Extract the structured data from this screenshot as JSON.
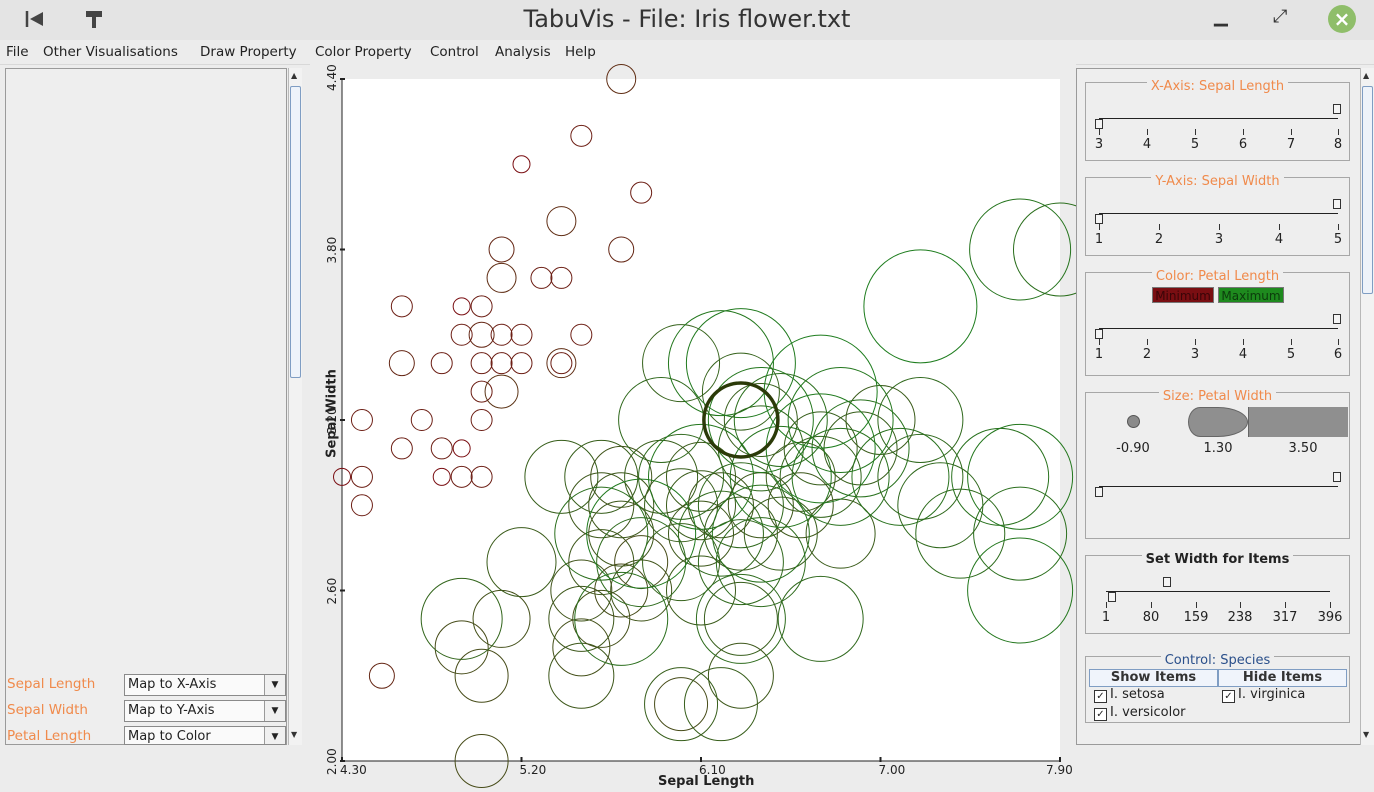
{
  "window": {
    "title": "TabuVis - File: Iris flower.txt"
  },
  "menu": [
    "File",
    "Other Visualisations",
    "Draw Property",
    "Color Property",
    "Control",
    "Analysis",
    "Help"
  ],
  "left": {
    "mappings": [
      {
        "label": "Sepal Length",
        "value": "Map to X-Axis"
      },
      {
        "label": "Sepal Width",
        "value": "Map to Y-Axis"
      },
      {
        "label": "Petal Length",
        "value": "Map to Color"
      }
    ]
  },
  "plot": {
    "xlabel": "Sepal Length",
    "ylabel": "Sepal Width",
    "x_ticks": [
      "4.30",
      "5.20",
      "6.10",
      "7.00",
      "7.90"
    ],
    "y_ticks": [
      "2.00",
      "2.60",
      "3.20",
      "3.80",
      "4.40"
    ]
  },
  "chart_data": {
    "type": "scatter",
    "xlabel": "Sepal Length",
    "ylabel": "Sepal Width",
    "xlim": [
      4.3,
      7.9
    ],
    "ylim": [
      2.0,
      4.4
    ],
    "size_encoding": "Petal Width",
    "color_encoding": "Petal Length",
    "color_min": "#7a0e12",
    "color_max": "#1e7d1e",
    "highlight_color": "#2b3a08",
    "series": [
      {
        "name": "I. setosa",
        "points": [
          [
            4.3,
            3.0,
            0.1
          ],
          [
            4.4,
            2.9,
            0.2
          ],
          [
            4.4,
            3.0,
            0.2
          ],
          [
            4.4,
            3.2,
            0.2
          ],
          [
            4.5,
            2.3,
            0.3
          ],
          [
            4.6,
            3.1,
            0.2
          ],
          [
            4.6,
            3.4,
            0.3
          ],
          [
            4.6,
            3.6,
            0.2
          ],
          [
            4.7,
            3.2,
            0.2
          ],
          [
            4.8,
            3.0,
            0.1
          ],
          [
            4.8,
            3.4,
            0.2
          ],
          [
            4.8,
            3.1,
            0.2
          ],
          [
            4.9,
            3.0,
            0.2
          ],
          [
            4.9,
            3.1,
            0.1
          ],
          [
            4.9,
            3.6,
            0.1
          ],
          [
            5.0,
            3.0,
            0.2
          ],
          [
            5.0,
            3.2,
            0.2
          ],
          [
            5.0,
            3.3,
            0.2
          ],
          [
            5.0,
            3.4,
            0.2
          ],
          [
            5.0,
            3.5,
            0.3
          ],
          [
            5.0,
            3.6,
            0.2
          ],
          [
            5.1,
            3.3,
            0.5
          ],
          [
            5.1,
            3.4,
            0.2
          ],
          [
            5.1,
            3.5,
            0.2
          ],
          [
            5.1,
            3.8,
            0.3
          ],
          [
            5.1,
            3.7,
            0.4
          ],
          [
            5.2,
            3.4,
            0.2
          ],
          [
            5.2,
            3.5,
            0.2
          ],
          [
            5.2,
            4.1,
            0.1
          ],
          [
            5.3,
            3.7,
            0.2
          ],
          [
            5.4,
            3.4,
            0.2
          ],
          [
            5.4,
            3.7,
            0.2
          ],
          [
            5.4,
            3.9,
            0.4
          ],
          [
            5.5,
            3.5,
            0.2
          ],
          [
            5.5,
            4.2,
            0.2
          ],
          [
            5.7,
            3.8,
            0.3
          ],
          [
            5.7,
            4.4,
            0.4
          ],
          [
            5.8,
            4.0,
            0.2
          ],
          [
            5.4,
            3.4,
            0.4
          ],
          [
            4.9,
            3.5,
            0.2
          ]
        ]
      },
      {
        "name": "I. versicolor",
        "points": [
          [
            4.9,
            2.4,
            1.0
          ],
          [
            5.0,
            2.0,
            1.0
          ],
          [
            5.0,
            2.3,
            1.0
          ],
          [
            5.1,
            2.5,
            1.1
          ],
          [
            5.2,
            2.7,
            1.4
          ],
          [
            5.4,
            3.0,
            1.5
          ],
          [
            5.5,
            2.3,
            1.3
          ],
          [
            5.5,
            2.4,
            1.1
          ],
          [
            5.5,
            2.5,
            1.3
          ],
          [
            5.5,
            2.6,
            1.2
          ],
          [
            5.6,
            2.5,
            1.1
          ],
          [
            5.6,
            2.7,
            1.3
          ],
          [
            5.6,
            2.9,
            1.3
          ],
          [
            5.6,
            3.0,
            1.5
          ],
          [
            5.7,
            2.6,
            1.0
          ],
          [
            5.7,
            2.8,
            1.3
          ],
          [
            5.7,
            2.9,
            1.3
          ],
          [
            5.7,
            3.0,
            1.2
          ],
          [
            5.8,
            2.6,
            1.2
          ],
          [
            5.8,
            2.7,
            1.0
          ],
          [
            5.9,
            3.0,
            1.5
          ],
          [
            5.9,
            3.2,
            1.8
          ],
          [
            6.0,
            2.2,
            1.0
          ],
          [
            6.0,
            2.7,
            1.6
          ],
          [
            6.0,
            2.9,
            1.5
          ],
          [
            6.0,
            3.4,
            1.6
          ],
          [
            6.1,
            2.8,
            1.3
          ],
          [
            6.1,
            2.9,
            1.4
          ],
          [
            6.1,
            3.0,
            1.4
          ],
          [
            6.2,
            2.2,
            1.5
          ],
          [
            6.2,
            2.9,
            1.3
          ],
          [
            6.3,
            2.3,
            1.3
          ],
          [
            6.3,
            2.5,
            1.5
          ],
          [
            6.3,
            3.3,
            1.6
          ],
          [
            6.4,
            2.9,
            1.3
          ],
          [
            6.4,
            3.2,
            1.5
          ],
          [
            6.5,
            2.8,
            1.5
          ],
          [
            6.6,
            2.9,
            1.3
          ],
          [
            6.6,
            3.0,
            1.4
          ],
          [
            6.7,
            3.1,
            1.5
          ],
          [
            6.8,
            2.8,
            1.4
          ],
          [
            6.9,
            3.1,
            1.5
          ],
          [
            7.0,
            3.2,
            1.4
          ],
          [
            6.7,
            3.0,
            1.7
          ]
        ]
      },
      {
        "name": "I. virginica",
        "points": [
          [
            4.9,
            2.5,
            1.7
          ],
          [
            5.6,
            2.8,
            2.0
          ],
          [
            5.7,
            2.5,
            2.0
          ],
          [
            5.8,
            2.7,
            1.9
          ],
          [
            5.8,
            2.8,
            2.4
          ],
          [
            6.0,
            2.2,
            1.5
          ],
          [
            6.0,
            3.0,
            1.8
          ],
          [
            6.1,
            2.6,
            1.4
          ],
          [
            6.1,
            3.0,
            2.3
          ],
          [
            6.2,
            2.8,
            1.8
          ],
          [
            6.2,
            3.4,
            2.3
          ],
          [
            6.3,
            2.5,
            1.9
          ],
          [
            6.3,
            2.7,
            1.8
          ],
          [
            6.3,
            2.8,
            1.5
          ],
          [
            6.3,
            2.9,
            1.8
          ],
          [
            6.3,
            3.4,
            2.4
          ],
          [
            6.4,
            2.7,
            1.9
          ],
          [
            6.4,
            2.8,
            2.1
          ],
          [
            6.4,
            3.1,
            1.8
          ],
          [
            6.4,
            3.2,
            2.3
          ],
          [
            6.5,
            3.0,
            2.2
          ],
          [
            6.5,
            3.2,
            2.0
          ],
          [
            6.7,
            2.5,
            1.8
          ],
          [
            6.7,
            3.1,
            2.4
          ],
          [
            6.7,
            3.3,
            2.5
          ],
          [
            6.8,
            3.0,
            2.1
          ],
          [
            6.8,
            3.2,
            2.3
          ],
          [
            6.9,
            3.1,
            2.1
          ],
          [
            7.1,
            3.0,
            2.1
          ],
          [
            7.2,
            3.0,
            1.8
          ],
          [
            7.2,
            3.2,
            1.8
          ],
          [
            7.2,
            3.6,
            2.5
          ],
          [
            7.4,
            2.8,
            1.9
          ],
          [
            7.6,
            3.0,
            2.1
          ],
          [
            7.7,
            2.6,
            2.3
          ],
          [
            7.7,
            2.8,
            2.0
          ],
          [
            7.7,
            3.0,
            2.3
          ],
          [
            7.7,
            3.8,
            2.2
          ],
          [
            7.9,
            3.8,
            2.0
          ],
          [
            7.3,
            2.9,
            1.8
          ]
        ]
      }
    ],
    "highlighted_point": [
      6.3,
      3.2,
      1.8
    ]
  },
  "right": {
    "x_axis": {
      "title": "X-Axis: Sepal Length",
      "ticks": [
        "3",
        "4",
        "5",
        "6",
        "7",
        "8"
      ]
    },
    "y_axis": {
      "title": "Y-Axis: Sepal Width",
      "ticks": [
        "1",
        "2",
        "3",
        "4",
        "5"
      ]
    },
    "color": {
      "title": "Color: Petal Length",
      "min_label": "Minimum",
      "max_label": "Maximum",
      "ticks": [
        "1",
        "2",
        "3",
        "4",
        "5",
        "6"
      ]
    },
    "size": {
      "title": "Size: Petal Width",
      "values": [
        "-0.90",
        "1.30",
        "3.50"
      ]
    },
    "width": {
      "title": "Set Width for Items",
      "ticks": [
        "1",
        "80",
        "159",
        "238",
        "317",
        "396"
      ],
      "value": 80
    },
    "control": {
      "title": "Control: Species",
      "show_label": "Show Items",
      "hide_label": "Hide Items",
      "species": [
        {
          "name": "I. setosa",
          "checked": true
        },
        {
          "name": "I. virginica",
          "checked": true
        },
        {
          "name": "I. versicolor",
          "checked": true
        }
      ]
    }
  }
}
